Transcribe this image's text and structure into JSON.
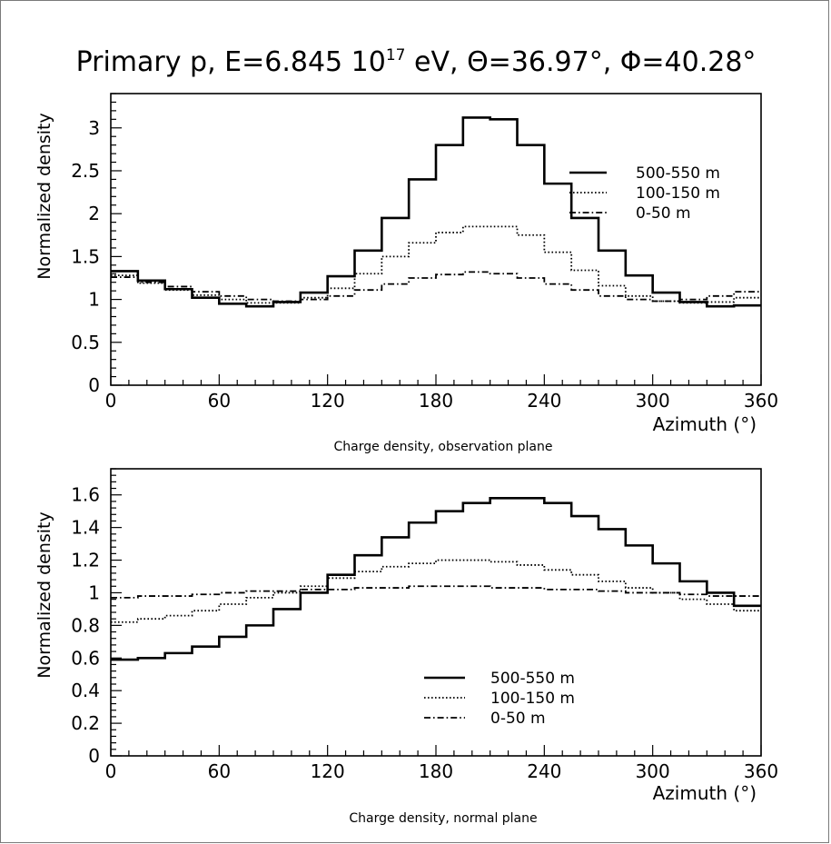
{
  "figure": {
    "title": {
      "prefix": "Primary p, E=6.845 10",
      "exponent": "17",
      "suffix": " eV, Θ=36.97°, Φ=40.28°"
    }
  },
  "chart_data": [
    {
      "type": "line",
      "step": true,
      "caption": "Charge density, observation plane",
      "xlabel": "Azimuth (°)",
      "ylabel": "Normalized density",
      "xlim": [
        0,
        360
      ],
      "ylim": [
        0,
        3.4
      ],
      "xticks": [
        "0",
        "60",
        "120",
        "180",
        "240",
        "300",
        "360"
      ],
      "yticks": [
        "0",
        "0.5",
        "1",
        "1.5",
        "2",
        "2.5",
        "3"
      ],
      "legend_position": "right",
      "bin_edges": [
        0,
        15,
        30,
        45,
        60,
        75,
        90,
        105,
        120,
        135,
        150,
        165,
        180,
        195,
        210,
        225,
        240,
        255,
        270,
        285,
        300,
        315,
        330,
        345,
        360
      ],
      "series": [
        {
          "name": "500-550 m",
          "style": "solid",
          "values": [
            1.33,
            1.22,
            1.12,
            1.02,
            0.95,
            0.92,
            0.97,
            1.08,
            1.27,
            1.57,
            1.95,
            2.4,
            2.8,
            3.12,
            3.1,
            2.8,
            2.35,
            1.95,
            1.57,
            1.28,
            1.08,
            0.97,
            0.92,
            0.93
          ]
        },
        {
          "name": "100-150 m",
          "style": "dotted",
          "values": [
            1.28,
            1.19,
            1.11,
            1.05,
            1.0,
            0.96,
            0.96,
            1.02,
            1.13,
            1.3,
            1.5,
            1.66,
            1.78,
            1.85,
            1.85,
            1.75,
            1.55,
            1.34,
            1.16,
            1.04,
            0.98,
            0.96,
            0.97,
            1.02
          ]
        },
        {
          "name": "0-50 m",
          "style": "dashdot",
          "values": [
            1.26,
            1.2,
            1.15,
            1.09,
            1.04,
            1.0,
            0.98,
            1.0,
            1.04,
            1.11,
            1.18,
            1.25,
            1.29,
            1.32,
            1.3,
            1.25,
            1.18,
            1.11,
            1.04,
            1.0,
            0.98,
            1.0,
            1.04,
            1.09
          ]
        }
      ]
    },
    {
      "type": "line",
      "step": true,
      "caption": "Charge density, normal plane",
      "xlabel": "Azimuth (°)",
      "ylabel": "Normalized density",
      "xlim": [
        0,
        360
      ],
      "ylim": [
        0,
        1.76
      ],
      "xticks": [
        "0",
        "60",
        "120",
        "180",
        "240",
        "300",
        "360"
      ],
      "yticks": [
        "0",
        "0.2",
        "0.4",
        "0.6",
        "0.8",
        "1",
        "1.2",
        "1.4",
        "1.6"
      ],
      "legend_position": "center",
      "bin_edges": [
        0,
        15,
        30,
        45,
        60,
        75,
        90,
        105,
        120,
        135,
        150,
        165,
        180,
        195,
        210,
        225,
        240,
        255,
        270,
        285,
        300,
        315,
        330,
        345,
        360
      ],
      "series": [
        {
          "name": "500-550 m",
          "style": "solid",
          "values": [
            0.59,
            0.6,
            0.63,
            0.67,
            0.73,
            0.8,
            0.9,
            1.0,
            1.11,
            1.23,
            1.34,
            1.43,
            1.5,
            1.55,
            1.58,
            1.58,
            1.55,
            1.47,
            1.39,
            1.29,
            1.18,
            1.07,
            1.0,
            0.92
          ]
        },
        {
          "name": "100-150 m",
          "style": "dotted",
          "values": [
            0.82,
            0.84,
            0.86,
            0.89,
            0.93,
            0.97,
            1.0,
            1.04,
            1.09,
            1.13,
            1.16,
            1.18,
            1.2,
            1.2,
            1.19,
            1.17,
            1.14,
            1.11,
            1.07,
            1.03,
            1.0,
            0.96,
            0.93,
            0.89
          ]
        },
        {
          "name": "0-50 m",
          "style": "dashdot",
          "values": [
            0.97,
            0.98,
            0.98,
            0.99,
            1.0,
            1.01,
            1.01,
            1.02,
            1.02,
            1.03,
            1.03,
            1.04,
            1.04,
            1.04,
            1.03,
            1.03,
            1.02,
            1.02,
            1.01,
            1.0,
            1.0,
            0.99,
            0.98,
            0.98
          ]
        }
      ]
    }
  ]
}
